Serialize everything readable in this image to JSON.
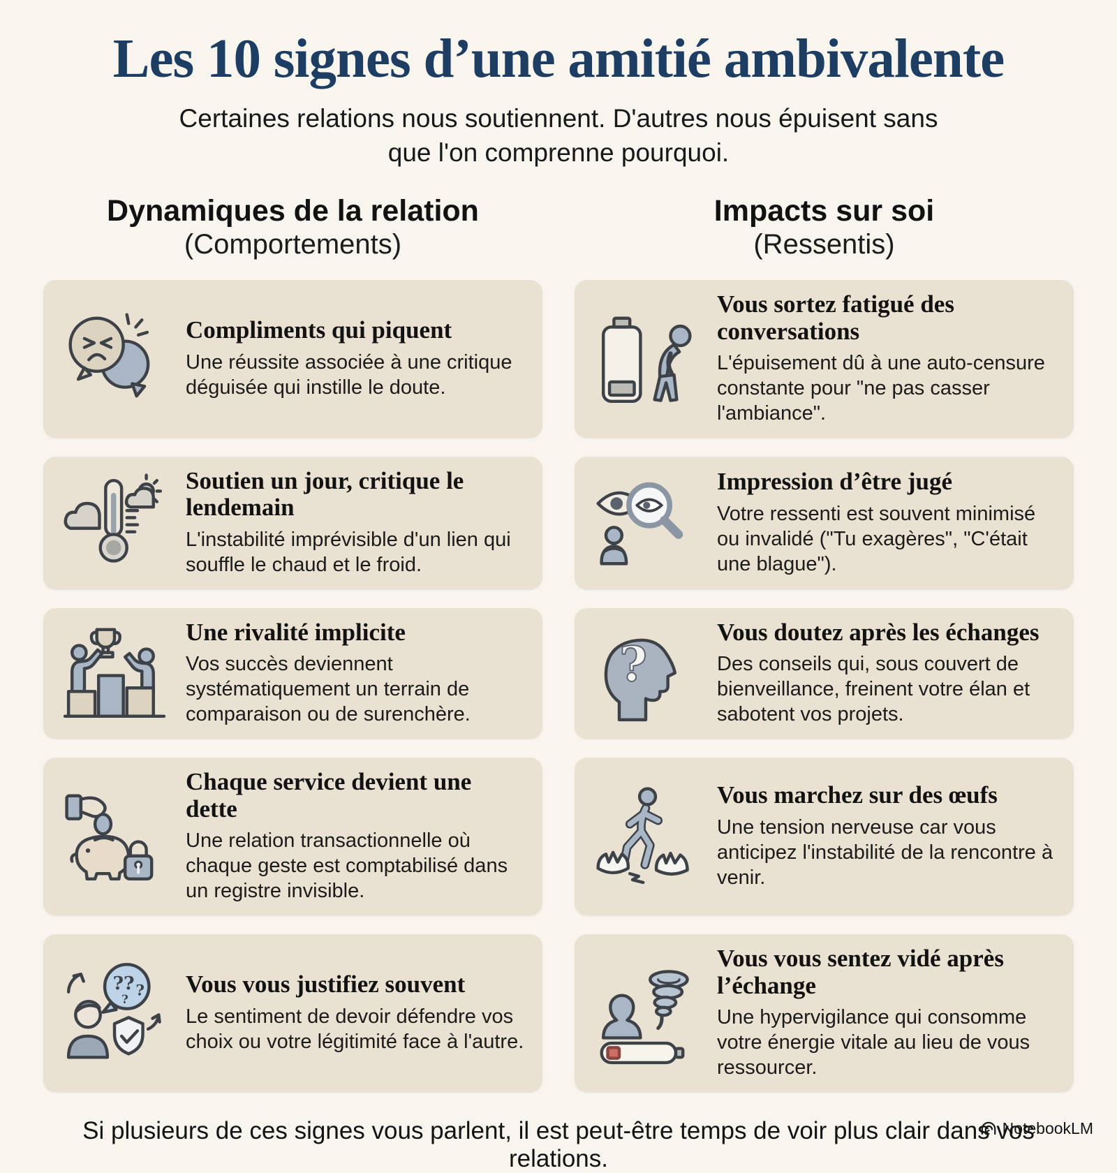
{
  "page": {
    "title": "Les 10 signes d’une amitié ambivalente",
    "subtitle": "Certaines relations nous soutiennent. D'autres nous épuisent sans que l'on comprenne pourquoi.",
    "footer": "Si plusieurs de ces signes vous parlent, il est peut-être temps de voir plus clair dans vos relations.",
    "brand": "NotebookLM",
    "brand_icon": "notebooklm-logo-icon"
  },
  "colors": {
    "background": "#f7f5ee",
    "card_background": "#e9e1d1",
    "title_navy": "#1e3d63",
    "text": "#181818",
    "icon_blue_gray": "#a9b6c6",
    "icon_beige": "#ddd3c1",
    "icon_outline": "#3d4248",
    "battery_low_red": "#cc6f66"
  },
  "columns": [
    {
      "heading": "Dynamiques de la relation",
      "subheading": "(Comportements)",
      "cards": [
        {
          "icon": "angry-speech-bubbles-icon",
          "title": "Compliments qui piquent",
          "description": "Une réussite associée à une critique déguisée qui instille le doute."
        },
        {
          "icon": "thermometer-weather-icon",
          "title": "Soutien un jour, critique le lendemain",
          "description": "L'instabilité imprévisible d'un lien qui souffle le chaud et le froid."
        },
        {
          "icon": "podium-trophy-icon",
          "title": "Une rivalité implicite",
          "description": "Vos succès deviennent systématiquement un terrain de comparaison ou de surenchère."
        },
        {
          "icon": "piggy-bank-lock-icon",
          "title": "Chaque service devient une dette",
          "description": "Une relation transactionnelle où chaque geste est comptabilisé dans un registre invisible."
        },
        {
          "icon": "person-question-shield-icon",
          "title": "Vous vous justifiez souvent",
          "description": "Le sentiment de devoir défendre vos choix ou votre légitimité face à l'autre."
        }
      ]
    },
    {
      "heading": "Impacts sur soi",
      "subheading": "(Ressentis)",
      "cards": [
        {
          "icon": "empty-battery-person-icon",
          "title": "Vous sortez fatigué des conversations",
          "description": "L'épuisement dû à une auto-censure constante pour \"ne pas casser l'ambiance\"."
        },
        {
          "icon": "eye-magnifier-icon",
          "title": "Impression d’être jugé",
          "description": "Votre ressenti est souvent minimisé ou invalidé (\"Tu exagères\", \"C'était une blague\")."
        },
        {
          "icon": "head-question-icon",
          "title": "Vous doutez après les échanges",
          "description": "Des conseils qui, sous couvert de bienveillance, freinent votre élan et sabotent vos projets."
        },
        {
          "icon": "walking-eggshells-icon",
          "title": "Vous marchez sur des œufs",
          "description": "Une tension nerveuse car vous anticipez l'instabilité de la rencontre à venir."
        },
        {
          "icon": "person-tornado-battery-icon",
          "title": "Vous vous sentez vidé après l’échange",
          "description": "Une hypervigilance qui consomme votre énergie vitale au lieu de vous ressourcer."
        }
      ]
    }
  ]
}
